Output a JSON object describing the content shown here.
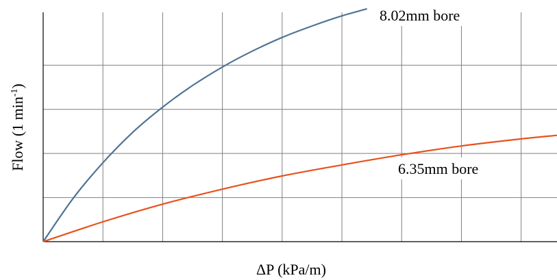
{
  "chart_data": {
    "type": "line",
    "title": "",
    "xlabel": "ΔP  (kPa/m)",
    "ylabel": {
      "prefix": "Flow (1 min",
      "superscript": "-1",
      "suffix": ")"
    },
    "xlim": [
      0,
      8.6
    ],
    "ylim": [
      0,
      5.2
    ],
    "x_gridlines": [
      1,
      2,
      3,
      4,
      5,
      6,
      7,
      8
    ],
    "y_gridlines": [
      1,
      2,
      3,
      4
    ],
    "grid": true,
    "series": [
      {
        "name": "8.02mm bore",
        "color": "#4f7396",
        "x": [
          0,
          0.5,
          1,
          1.5,
          2,
          2.5,
          3,
          3.5,
          4,
          4.5,
          5,
          5.42
        ],
        "y": [
          0,
          0.98,
          1.79,
          2.48,
          3.05,
          3.54,
          3.96,
          4.32,
          4.63,
          4.89,
          5.12,
          5.28
        ]
      },
      {
        "name": "6.35mm bore",
        "color": "#e8511c",
        "x": [
          0,
          1,
          2,
          3,
          4,
          5,
          6,
          7,
          8,
          8.6
        ],
        "y": [
          0,
          0.45,
          0.85,
          1.19,
          1.49,
          1.74,
          1.97,
          2.17,
          2.33,
          2.41
        ]
      }
    ]
  }
}
